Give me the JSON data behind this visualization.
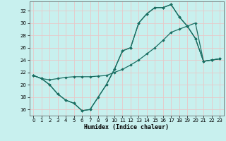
{
  "xlabel": "Humidex (Indice chaleur)",
  "bg_color": "#c8f0ee",
  "grid_color": "#e8c8c8",
  "line_color": "#1a6e62",
  "xlim": [
    -0.5,
    23.5
  ],
  "ylim": [
    15.0,
    33.5
  ],
  "xticks": [
    0,
    1,
    2,
    3,
    4,
    5,
    6,
    7,
    8,
    9,
    10,
    11,
    12,
    13,
    14,
    15,
    16,
    17,
    18,
    19,
    20,
    21,
    22,
    23
  ],
  "yticks": [
    16,
    18,
    20,
    22,
    24,
    26,
    28,
    30,
    32
  ],
  "line1_x": [
    0,
    1,
    2,
    3,
    4,
    5,
    6,
    7,
    8,
    9,
    10,
    11,
    12,
    13,
    14,
    15,
    16,
    17,
    18,
    19,
    20,
    21,
    22,
    23
  ],
  "line1_y": [
    21.5,
    21.0,
    20.0,
    18.5,
    17.5,
    17.0,
    15.8,
    16.0,
    18.0,
    20.0,
    22.5,
    25.5,
    26.0,
    30.0,
    31.5,
    32.5,
    32.5,
    33.0,
    31.0,
    29.5,
    27.5,
    23.8,
    24.0,
    24.2
  ],
  "line2_x": [
    0,
    1,
    2,
    3,
    4,
    5,
    6,
    7,
    8,
    9,
    10,
    11,
    12,
    13,
    14,
    15,
    16,
    17,
    18,
    19,
    20,
    21,
    22,
    23
  ],
  "line2_y": [
    21.5,
    21.0,
    20.8,
    21.0,
    21.2,
    21.3,
    21.3,
    21.3,
    21.4,
    21.5,
    22.0,
    22.5,
    23.2,
    24.0,
    25.0,
    26.0,
    27.2,
    28.5,
    29.0,
    29.5,
    30.0,
    23.8,
    24.0,
    24.2
  ],
  "line3_x": [
    0,
    1,
    2,
    3,
    4,
    5,
    6,
    7,
    9,
    10,
    11,
    12,
    13,
    14,
    15,
    16,
    17,
    18,
    19,
    20,
    21,
    22,
    23
  ],
  "line3_y": [
    21.5,
    21.0,
    20.0,
    18.5,
    17.5,
    17.0,
    15.8,
    16.0,
    20.0,
    22.5,
    25.5,
    26.0,
    30.0,
    31.5,
    32.5,
    32.5,
    33.0,
    31.0,
    29.5,
    27.5,
    23.8,
    24.0,
    24.2
  ]
}
